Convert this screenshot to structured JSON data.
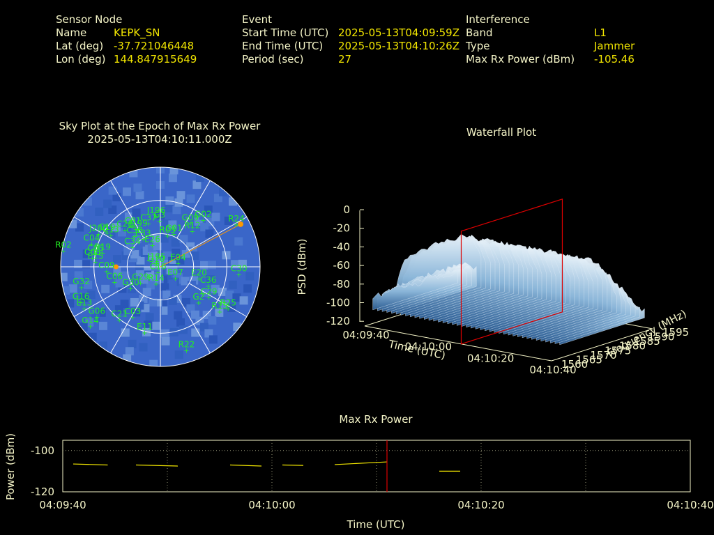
{
  "header": {
    "sensor": {
      "heading": "Sensor Node",
      "name_label": "Name",
      "name_value": "KEPK_SN",
      "lat_label": "Lat (deg)",
      "lat_value": "-37.721046448",
      "lon_label": "Lon (deg)",
      "lon_value": "144.847915649"
    },
    "event": {
      "heading": "Event",
      "start_label": "Start Time (UTC)",
      "start_value": "2025-05-13T04:09:59Z",
      "end_label": "End Time (UTC)",
      "end_value": "2025-05-13T04:10:26Z",
      "period_label": "Period (sec)",
      "period_value": "27"
    },
    "interference": {
      "heading": "Interference",
      "band_label": "Band",
      "band_value": "L1",
      "type_label": "Type",
      "type_value": "Jammer",
      "power_label": "Max Rx Power (dBm)",
      "power_value": "-105.46"
    }
  },
  "colors": {
    "text": "#f5f5c8",
    "value": "#f2e600",
    "satellite": "#22ee22",
    "marker": "#ff9900",
    "marker_red": "#dd0000",
    "sky_base": "#3a66c8"
  },
  "chart_data": [
    {
      "type": "scatter",
      "subtype": "polar-sky-plot",
      "title": "Sky Plot at the Epoch of Max Rx Power",
      "subtitle": "2025-05-13T04:10:11.000Z",
      "elevation_rings_deg": [
        0,
        30,
        60
      ],
      "satellites": [
        {
          "id": "G10",
          "az": 0,
          "el": 88
        },
        {
          "id": "J195",
          "az": 5,
          "el": 86
        },
        {
          "id": "E26",
          "az": 350,
          "el": 70
        },
        {
          "id": "R03",
          "az": 20,
          "el": 60
        },
        {
          "id": "G01",
          "az": 28,
          "el": 56
        },
        {
          "id": "E33",
          "az": 335,
          "el": 62
        },
        {
          "id": "C38",
          "az": 325,
          "el": 56
        },
        {
          "id": "J199",
          "az": 335,
          "el": 52
        },
        {
          "id": "C37",
          "az": 350,
          "el": 50
        },
        {
          "id": "G3",
          "az": 4,
          "el": 48
        },
        {
          "id": "C01",
          "az": 330,
          "el": 48
        },
        {
          "id": "C28",
          "az": 320,
          "el": 46
        },
        {
          "id": "J196",
          "az": 0,
          "el": 44
        },
        {
          "id": "G09",
          "az": 38,
          "el": 40
        },
        {
          "id": "R12",
          "az": 45,
          "el": 44
        },
        {
          "id": "J200",
          "az": 300,
          "el": 30
        },
        {
          "id": "C19",
          "az": 305,
          "el": 36
        },
        {
          "id": "C04",
          "az": 290,
          "el": 28
        },
        {
          "id": "C13",
          "az": 305,
          "el": 40
        },
        {
          "id": "R02",
          "az": 280,
          "el": 5
        },
        {
          "id": "C05",
          "az": 282,
          "el": 34
        },
        {
          "id": "C08",
          "az": 278,
          "el": 32
        },
        {
          "id": "R19",
          "az": 285,
          "el": 40
        },
        {
          "id": "C34",
          "az": 310,
          "el": 62
        },
        {
          "id": "E15",
          "az": 275,
          "el": 35
        },
        {
          "id": "C09",
          "az": 265,
          "el": 45
        },
        {
          "id": "G32",
          "az": 255,
          "el": 20
        },
        {
          "id": "G16",
          "az": 245,
          "el": 15
        },
        {
          "id": "E13",
          "az": 240,
          "el": 15
        },
        {
          "id": "G14",
          "az": 228,
          "el": 10
        },
        {
          "id": "G06",
          "az": 230,
          "el": 20
        },
        {
          "id": "C21",
          "az": 215,
          "el": 32
        },
        {
          "id": "C03",
          "az": 205,
          "el": 40
        },
        {
          "id": "C06",
          "az": 250,
          "el": 50
        },
        {
          "id": "G30",
          "az": 230,
          "el": 60
        },
        {
          "id": "G29",
          "az": 225,
          "el": 70
        },
        {
          "id": "C16",
          "az": 160,
          "el": 85
        },
        {
          "id": "R14",
          "az": 180,
          "el": 75
        },
        {
          "id": "E07",
          "az": 120,
          "el": 70
        },
        {
          "id": "E04",
          "az": 80,
          "el": 70
        },
        {
          "id": "E20",
          "az": 105,
          "el": 50
        },
        {
          "id": "C36",
          "az": 110,
          "el": 40
        },
        {
          "id": "C30",
          "az": 95,
          "el": 15
        },
        {
          "id": "C29",
          "az": 120,
          "el": 35
        },
        {
          "id": "G2",
          "az": 130,
          "el": 40
        },
        {
          "id": "R15",
          "az": 125,
          "el": 20
        },
        {
          "id": "R25",
          "az": 120,
          "el": 15
        },
        {
          "id": "E11",
          "az": 190,
          "el": 30
        },
        {
          "id": "R22",
          "az": 160,
          "el": 10
        },
        {
          "id": "G02",
          "az": 45,
          "el": 30
        },
        {
          "id": "R24",
          "az": 62,
          "el": 8
        }
      ],
      "max_power_direction": {
        "az": 62,
        "el": 8
      },
      "jammer_marker": {
        "az": 270,
        "el": 50
      }
    },
    {
      "type": "area",
      "subtype": "3d-waterfall",
      "title": "Waterfall Plot",
      "xlabel": "Time (UTC)",
      "ylabel": "Frequency (MHz)",
      "zlabel": "PSD (dBm)",
      "x_ticks": [
        "04:09:40",
        "04:10:00",
        "04:10:20",
        "04:10:40"
      ],
      "y_ticks": [
        1560,
        1565,
        1570,
        1575,
        1580,
        1585,
        1590,
        1595
      ],
      "z_ticks": [
        0,
        -20,
        -40,
        -60,
        -80,
        -100,
        -120
      ],
      "zlim": [
        -120,
        0
      ],
      "marker_time": "04:10:11"
    },
    {
      "type": "line",
      "title": "Max Rx Power",
      "xlabel": "Time (UTC)",
      "ylabel": "Power (dBm)",
      "x_ticks": [
        "04:09:40",
        "04:10:00",
        "04:10:20",
        "04:10:40"
      ],
      "y_ticks": [
        -100,
        -120
      ],
      "ylim": [
        -120,
        -95
      ],
      "xlim_sec": [
        0,
        60
      ],
      "marker_sec": 31,
      "segments": [
        {
          "t": [
            1,
            4.3
          ],
          "v": [
            -106.5,
            -107
          ]
        },
        {
          "t": [
            7,
            11
          ],
          "v": [
            -107,
            -107.5
          ]
        },
        {
          "t": [
            16,
            19
          ],
          "v": [
            -107,
            -107.5
          ]
        },
        {
          "t": [
            21,
            23
          ],
          "v": [
            -107,
            -107.2
          ]
        },
        {
          "t": [
            26,
            31
          ],
          "v": [
            -106.8,
            -105.5
          ]
        },
        {
          "t": [
            36,
            38
          ],
          "v": [
            -110,
            -110
          ]
        }
      ]
    }
  ]
}
